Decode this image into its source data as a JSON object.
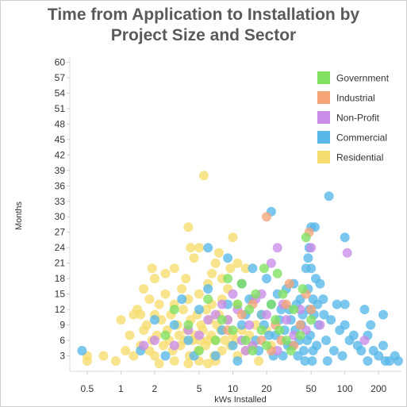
{
  "chart_data": {
    "type": "scatter",
    "title_lines": [
      "Time from Application to Installation by",
      "Project Size and Sector"
    ],
    "xlabel": "kWs Installed",
    "ylabel": "Months",
    "xscale": "log",
    "xlim": [
      0.35,
      320
    ],
    "ylim": [
      0,
      61
    ],
    "x_ticks": [
      {
        "value": 0.5,
        "label": "0.5"
      },
      {
        "value": 1,
        "label": "1"
      },
      {
        "value": 2,
        "label": "2"
      },
      {
        "value": 5,
        "label": "5"
      },
      {
        "value": 10,
        "label": "10"
      },
      {
        "value": 20,
        "label": "20"
      },
      {
        "value": 50,
        "label": "50"
      },
      {
        "value": 100,
        "label": "100"
      },
      {
        "value": 200,
        "label": "200"
      }
    ],
    "y_ticks": [
      {
        "value": 3,
        "label": "3"
      },
      {
        "value": 6,
        "label": "6"
      },
      {
        "value": 9,
        "label": "9"
      },
      {
        "value": 12,
        "label": "12"
      },
      {
        "value": 15,
        "label": "15"
      },
      {
        "value": 18,
        "label": "18"
      },
      {
        "value": 21,
        "label": "21"
      },
      {
        "value": 24,
        "label": "24"
      },
      {
        "value": 27,
        "label": "27"
      },
      {
        "value": 30,
        "label": "30"
      },
      {
        "value": 33,
        "label": "33"
      },
      {
        "value": 36,
        "label": "36"
      },
      {
        "value": 39,
        "label": "39"
      },
      {
        "value": 42,
        "label": "42"
      },
      {
        "value": 45,
        "label": "45"
      },
      {
        "value": 48,
        "label": "48"
      },
      {
        "value": 51,
        "label": "51"
      },
      {
        "value": 54,
        "label": "54"
      },
      {
        "value": 57,
        "label": "57"
      },
      {
        "value": 60,
        "label": "60"
      }
    ],
    "legend_position": "top-right",
    "series": [
      {
        "name": "Government",
        "color": "#7fe062",
        "points": [
          [
            45,
            26
          ],
          [
            18,
            8
          ],
          [
            22,
            13
          ],
          [
            30,
            6
          ],
          [
            8,
            10
          ],
          [
            12,
            17
          ],
          [
            25,
            19
          ],
          [
            35,
            12
          ],
          [
            40,
            7
          ],
          [
            15,
            4
          ],
          [
            6,
            14
          ],
          [
            10,
            8
          ],
          [
            28,
            15
          ],
          [
            50,
            10
          ],
          [
            14,
            12
          ],
          [
            20,
            5
          ],
          [
            4,
            9
          ],
          [
            3,
            12
          ],
          [
            7,
            6
          ],
          [
            9,
            18
          ],
          [
            16,
            15
          ],
          [
            33,
            4
          ],
          [
            5,
            4
          ],
          [
            11,
            13
          ],
          [
            24,
            10
          ],
          [
            2.5,
            7
          ],
          [
            19,
            20
          ],
          [
            42,
            16
          ],
          [
            13,
            6
          ],
          [
            26,
            8
          ]
        ]
      },
      {
        "name": "Industrial",
        "color": "#f4a477",
        "points": [
          [
            48,
            27
          ],
          [
            20,
            30
          ],
          [
            24,
            9
          ],
          [
            30,
            13
          ],
          [
            18,
            6
          ],
          [
            35,
            5
          ],
          [
            40,
            9
          ],
          [
            45,
            15
          ],
          [
            12,
            11
          ],
          [
            15,
            13
          ],
          [
            27,
            6
          ],
          [
            9,
            8
          ],
          [
            32,
            17
          ],
          [
            22,
            4
          ],
          [
            50,
            12
          ]
        ]
      },
      {
        "name": "Non-Profit",
        "color": "#c98ce8",
        "points": [
          [
            105,
            23
          ],
          [
            50,
            24
          ],
          [
            25,
            24
          ],
          [
            22,
            21
          ],
          [
            1.6,
            5
          ],
          [
            14,
            9
          ],
          [
            10,
            15
          ],
          [
            8,
            13
          ],
          [
            5,
            7
          ],
          [
            20,
            11
          ],
          [
            30,
            10
          ],
          [
            35,
            7
          ],
          [
            15,
            5
          ],
          [
            12,
            6
          ],
          [
            40,
            12
          ],
          [
            28,
            13
          ],
          [
            18,
            15
          ],
          [
            7,
            11
          ],
          [
            45,
            8
          ],
          [
            3,
            5
          ],
          [
            150,
            6
          ],
          [
            2,
            6
          ],
          [
            25,
            4
          ],
          [
            60,
            9
          ],
          [
            16,
            14
          ],
          [
            6,
            10
          ],
          [
            4,
            8
          ],
          [
            11,
            12
          ],
          [
            9,
            10
          ],
          [
            13,
            4
          ]
        ]
      },
      {
        "name": "Commercial",
        "color": "#57b7e8",
        "points": [
          [
            72,
            34
          ],
          [
            22,
            31
          ],
          [
            50,
            28
          ],
          [
            54,
            28
          ],
          [
            48,
            24
          ],
          [
            100,
            26
          ],
          [
            60,
            17
          ],
          [
            85,
            13
          ],
          [
            100,
            13
          ],
          [
            100,
            9
          ],
          [
            120,
            7
          ],
          [
            140,
            4
          ],
          [
            180,
            4
          ],
          [
            200,
            3
          ],
          [
            230,
            2
          ],
          [
            280,
            3
          ],
          [
            0.45,
            4
          ],
          [
            2.5,
            3
          ],
          [
            6,
            24
          ],
          [
            9,
            22
          ],
          [
            15,
            20
          ],
          [
            20,
            18
          ],
          [
            30,
            16
          ],
          [
            40,
            14
          ],
          [
            45,
            20
          ],
          [
            55,
            18
          ],
          [
            65,
            11
          ],
          [
            75,
            10
          ],
          [
            90,
            8
          ],
          [
            110,
            6
          ],
          [
            130,
            5
          ],
          [
            160,
            2
          ],
          [
            160,
            7
          ],
          [
            220,
            5
          ],
          [
            220,
            11
          ],
          [
            250,
            2
          ],
          [
            70,
            2
          ],
          [
            80,
            4
          ],
          [
            12,
            17
          ],
          [
            14,
            14
          ],
          [
            18,
            11
          ],
          [
            22,
            13
          ],
          [
            26,
            10
          ],
          [
            32,
            12
          ],
          [
            36,
            8
          ],
          [
            42,
            11
          ],
          [
            46,
            6
          ],
          [
            52,
            14
          ],
          [
            56,
            5
          ],
          [
            58,
            9
          ],
          [
            10,
            5
          ],
          [
            12,
            9
          ],
          [
            16,
            6
          ],
          [
            24,
            7
          ],
          [
            28,
            3
          ],
          [
            34,
            5
          ],
          [
            38,
            3
          ],
          [
            44,
            2
          ],
          [
            48,
            12
          ],
          [
            52,
            4
          ],
          [
            7,
            3
          ],
          [
            8,
            8
          ],
          [
            11,
            2
          ],
          [
            13,
            11
          ],
          [
            17,
            4
          ],
          [
            19,
            9
          ],
          [
            21,
            7
          ],
          [
            23,
            3
          ],
          [
            27,
            12
          ],
          [
            29,
            8
          ],
          [
            31,
            5
          ],
          [
            33,
            10
          ],
          [
            37,
            13
          ],
          [
            39,
            6
          ],
          [
            41,
            9
          ],
          [
            43,
            4
          ],
          [
            47,
            16
          ],
          [
            49,
            7
          ],
          [
            51,
            2
          ],
          [
            53,
            11
          ],
          [
            57,
            13
          ],
          [
            5,
            12
          ],
          [
            4,
            6
          ],
          [
            3,
            9
          ],
          [
            6,
            16
          ],
          [
            9,
            13
          ],
          [
            35,
            17
          ],
          [
            25,
            15
          ],
          [
            50,
            20
          ],
          [
            47,
            22
          ],
          [
            64,
            14
          ],
          [
            68,
            6
          ],
          [
            95,
            3
          ],
          [
            150,
            12
          ],
          [
            170,
            9
          ],
          [
            300,
            2
          ],
          [
            2,
            10
          ],
          [
            1.5,
            4
          ],
          [
            3.5,
            14
          ],
          [
            4.5,
            3
          ]
        ]
      },
      {
        "name": "Residential",
        "color": "#f6dc6c",
        "points": [
          [
            5.5,
            38
          ],
          [
            4,
            28
          ],
          [
            10,
            26
          ],
          [
            5,
            24
          ],
          [
            4.5,
            22
          ],
          [
            7,
            21
          ],
          [
            3,
            20
          ],
          [
            2,
            18
          ],
          [
            8,
            18
          ],
          [
            12,
            17
          ],
          [
            1.6,
            16
          ],
          [
            2.5,
            15
          ],
          [
            3.5,
            16
          ],
          [
            5,
            15
          ],
          [
            6,
            17
          ],
          [
            9,
            16
          ],
          [
            1.8,
            14
          ],
          [
            2.2,
            13
          ],
          [
            3,
            13
          ],
          [
            4,
            14
          ],
          [
            6.5,
            13
          ],
          [
            8,
            14
          ],
          [
            11,
            13
          ],
          [
            1.4,
            12
          ],
          [
            1.5,
            11
          ],
          [
            1.3,
            11
          ],
          [
            2,
            11
          ],
          [
            2.8,
            11
          ],
          [
            3.6,
            12
          ],
          [
            4.8,
            11
          ],
          [
            5.8,
            12
          ],
          [
            7.5,
            11
          ],
          [
            1,
            10
          ],
          [
            1.7,
            9
          ],
          [
            2.3,
            10
          ],
          [
            3.2,
            9
          ],
          [
            4.2,
            10
          ],
          [
            5.2,
            9
          ],
          [
            6.2,
            10
          ],
          [
            7.2,
            9
          ],
          [
            9,
            10
          ],
          [
            1.2,
            7
          ],
          [
            1.6,
            8
          ],
          [
            2.1,
            7
          ],
          [
            2.6,
            8
          ],
          [
            3.3,
            7
          ],
          [
            3.9,
            8
          ],
          [
            4.6,
            7
          ],
          [
            5.4,
            8
          ],
          [
            6.4,
            7
          ],
          [
            7.8,
            8
          ],
          [
            10,
            7
          ],
          [
            12,
            8
          ],
          [
            0.5,
            3
          ],
          [
            0.5,
            2
          ],
          [
            0.7,
            3
          ],
          [
            0.9,
            2
          ],
          [
            1.1,
            4
          ],
          [
            1.3,
            3
          ],
          [
            1.5,
            5
          ],
          [
            1.8,
            4
          ],
          [
            2,
            3
          ],
          [
            2.4,
            5
          ],
          [
            2.9,
            4
          ],
          [
            3.4,
            5
          ],
          [
            4.1,
            3
          ],
          [
            4.9,
            4
          ],
          [
            5.7,
            5
          ],
          [
            6.8,
            3
          ],
          [
            8,
            4
          ],
          [
            9.5,
            5
          ],
          [
            11,
            3
          ],
          [
            13,
            4
          ],
          [
            15,
            5
          ],
          [
            17,
            2
          ],
          [
            2.2,
            1.5
          ],
          [
            3,
            2
          ],
          [
            4,
            1.5
          ],
          [
            5,
            2
          ],
          [
            6,
            1.5
          ],
          [
            7,
            2
          ],
          [
            1.9,
            6
          ],
          [
            2.7,
            6
          ],
          [
            3.7,
            6
          ],
          [
            4.4,
            6
          ],
          [
            5.1,
            6
          ],
          [
            6,
            6
          ],
          [
            7,
            6
          ],
          [
            8.5,
            6
          ],
          [
            10.5,
            6
          ],
          [
            14,
            7
          ],
          [
            16,
            9
          ],
          [
            18,
            11
          ],
          [
            20,
            8
          ],
          [
            22,
            5
          ],
          [
            2.5,
            19
          ],
          [
            3.8,
            18
          ],
          [
            6.5,
            19
          ],
          [
            9.5,
            20
          ],
          [
            7.5,
            23
          ],
          [
            4.2,
            24
          ],
          [
            1.9,
            20
          ],
          [
            11,
            21
          ],
          [
            13,
            20
          ],
          [
            15,
            14
          ]
        ]
      }
    ]
  }
}
